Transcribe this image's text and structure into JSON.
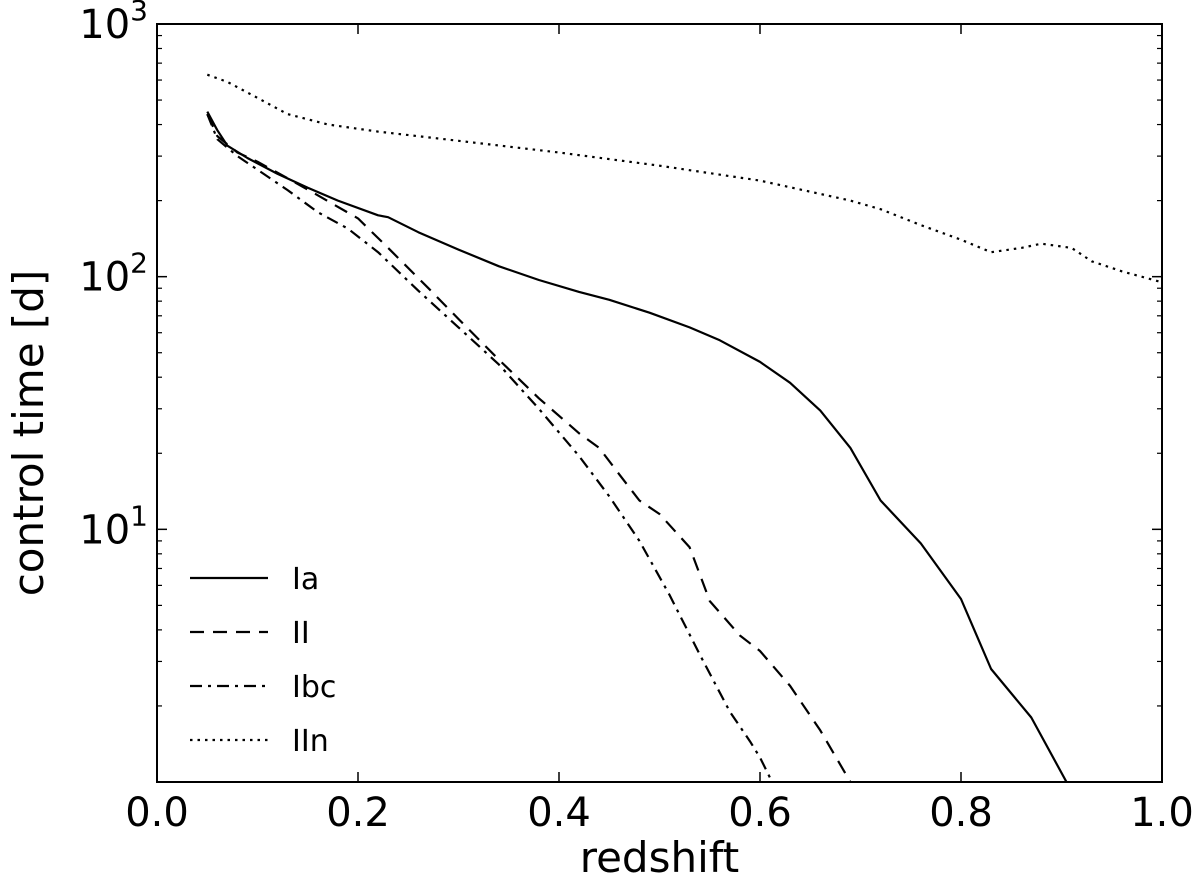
{
  "chart_data": {
    "type": "line",
    "title": "",
    "xlabel": "redshift",
    "ylabel": "control time [d]",
    "xlim": [
      0.0,
      1.0
    ],
    "ylim": [
      1,
      1000
    ],
    "yscale": "log",
    "grid": false,
    "legend_position": "bottom-left",
    "x_ticks": [
      "0.0",
      "0.2",
      "0.4",
      "0.6",
      "0.8",
      "1.0"
    ],
    "y_ticks": [
      {
        "base": "10",
        "exp": "1",
        "value": 10
      },
      {
        "base": "10",
        "exp": "2",
        "value": 100
      },
      {
        "base": "10",
        "exp": "3",
        "value": 1000
      }
    ],
    "series": [
      {
        "name": "Ia",
        "dash": "solid",
        "x": [
          0.05,
          0.06,
          0.07,
          0.09,
          0.12,
          0.15,
          0.18,
          0.22,
          0.23,
          0.26,
          0.3,
          0.34,
          0.38,
          0.42,
          0.45,
          0.49,
          0.53,
          0.56,
          0.6,
          0.63,
          0.66,
          0.69,
          0.72,
          0.76,
          0.8,
          0.83,
          0.87,
          0.905
        ],
        "y": [
          450,
          380,
          330,
          295,
          255,
          225,
          200,
          175,
          172,
          150,
          128,
          110,
          97,
          87,
          81,
          72,
          63,
          56,
          46,
          38,
          29.5,
          21,
          13,
          8.8,
          5.3,
          2.8,
          1.8,
          1.0
        ]
      },
      {
        "name": "II",
        "dash": "dashed",
        "x": [
          0.05,
          0.06,
          0.08,
          0.1,
          0.13,
          0.16,
          0.2,
          0.23,
          0.27,
          0.3,
          0.34,
          0.38,
          0.42,
          0.44,
          0.46,
          0.48,
          0.5,
          0.53,
          0.55,
          0.58,
          0.6,
          0.63,
          0.66,
          0.69
        ],
        "y": [
          440,
          360,
          310,
          285,
          245,
          210,
          170,
          130,
          90,
          68,
          47,
          33,
          24,
          21,
          16.5,
          13,
          11.5,
          8.5,
          5.2,
          3.8,
          3.3,
          2.4,
          1.6,
          1.0
        ]
      },
      {
        "name": "Ibc",
        "dash": "dashdot",
        "x": [
          0.05,
          0.06,
          0.08,
          0.1,
          0.13,
          0.16,
          0.19,
          0.22,
          0.26,
          0.3,
          0.34,
          0.38,
          0.42,
          0.45,
          0.48,
          0.51,
          0.54,
          0.57,
          0.59,
          0.6,
          0.612
        ],
        "y": [
          440,
          350,
          300,
          265,
          220,
          180,
          155,
          125,
          88,
          63,
          45,
          30,
          19.5,
          13.5,
          9.0,
          5.5,
          3.2,
          1.9,
          1.45,
          1.25,
          1.0
        ]
      },
      {
        "name": "IIn",
        "dash": "dotted",
        "x": [
          0.05,
          0.07,
          0.1,
          0.13,
          0.17,
          0.22,
          0.3,
          0.4,
          0.5,
          0.6,
          0.69,
          0.72,
          0.76,
          0.8,
          0.83,
          0.86,
          0.88,
          0.91,
          0.93,
          0.96,
          1.0
        ],
        "y": [
          630,
          590,
          510,
          440,
          400,
          375,
          345,
          310,
          275,
          240,
          200,
          185,
          160,
          140,
          125,
          130,
          135,
          130,
          115,
          105,
          95
        ]
      }
    ]
  }
}
